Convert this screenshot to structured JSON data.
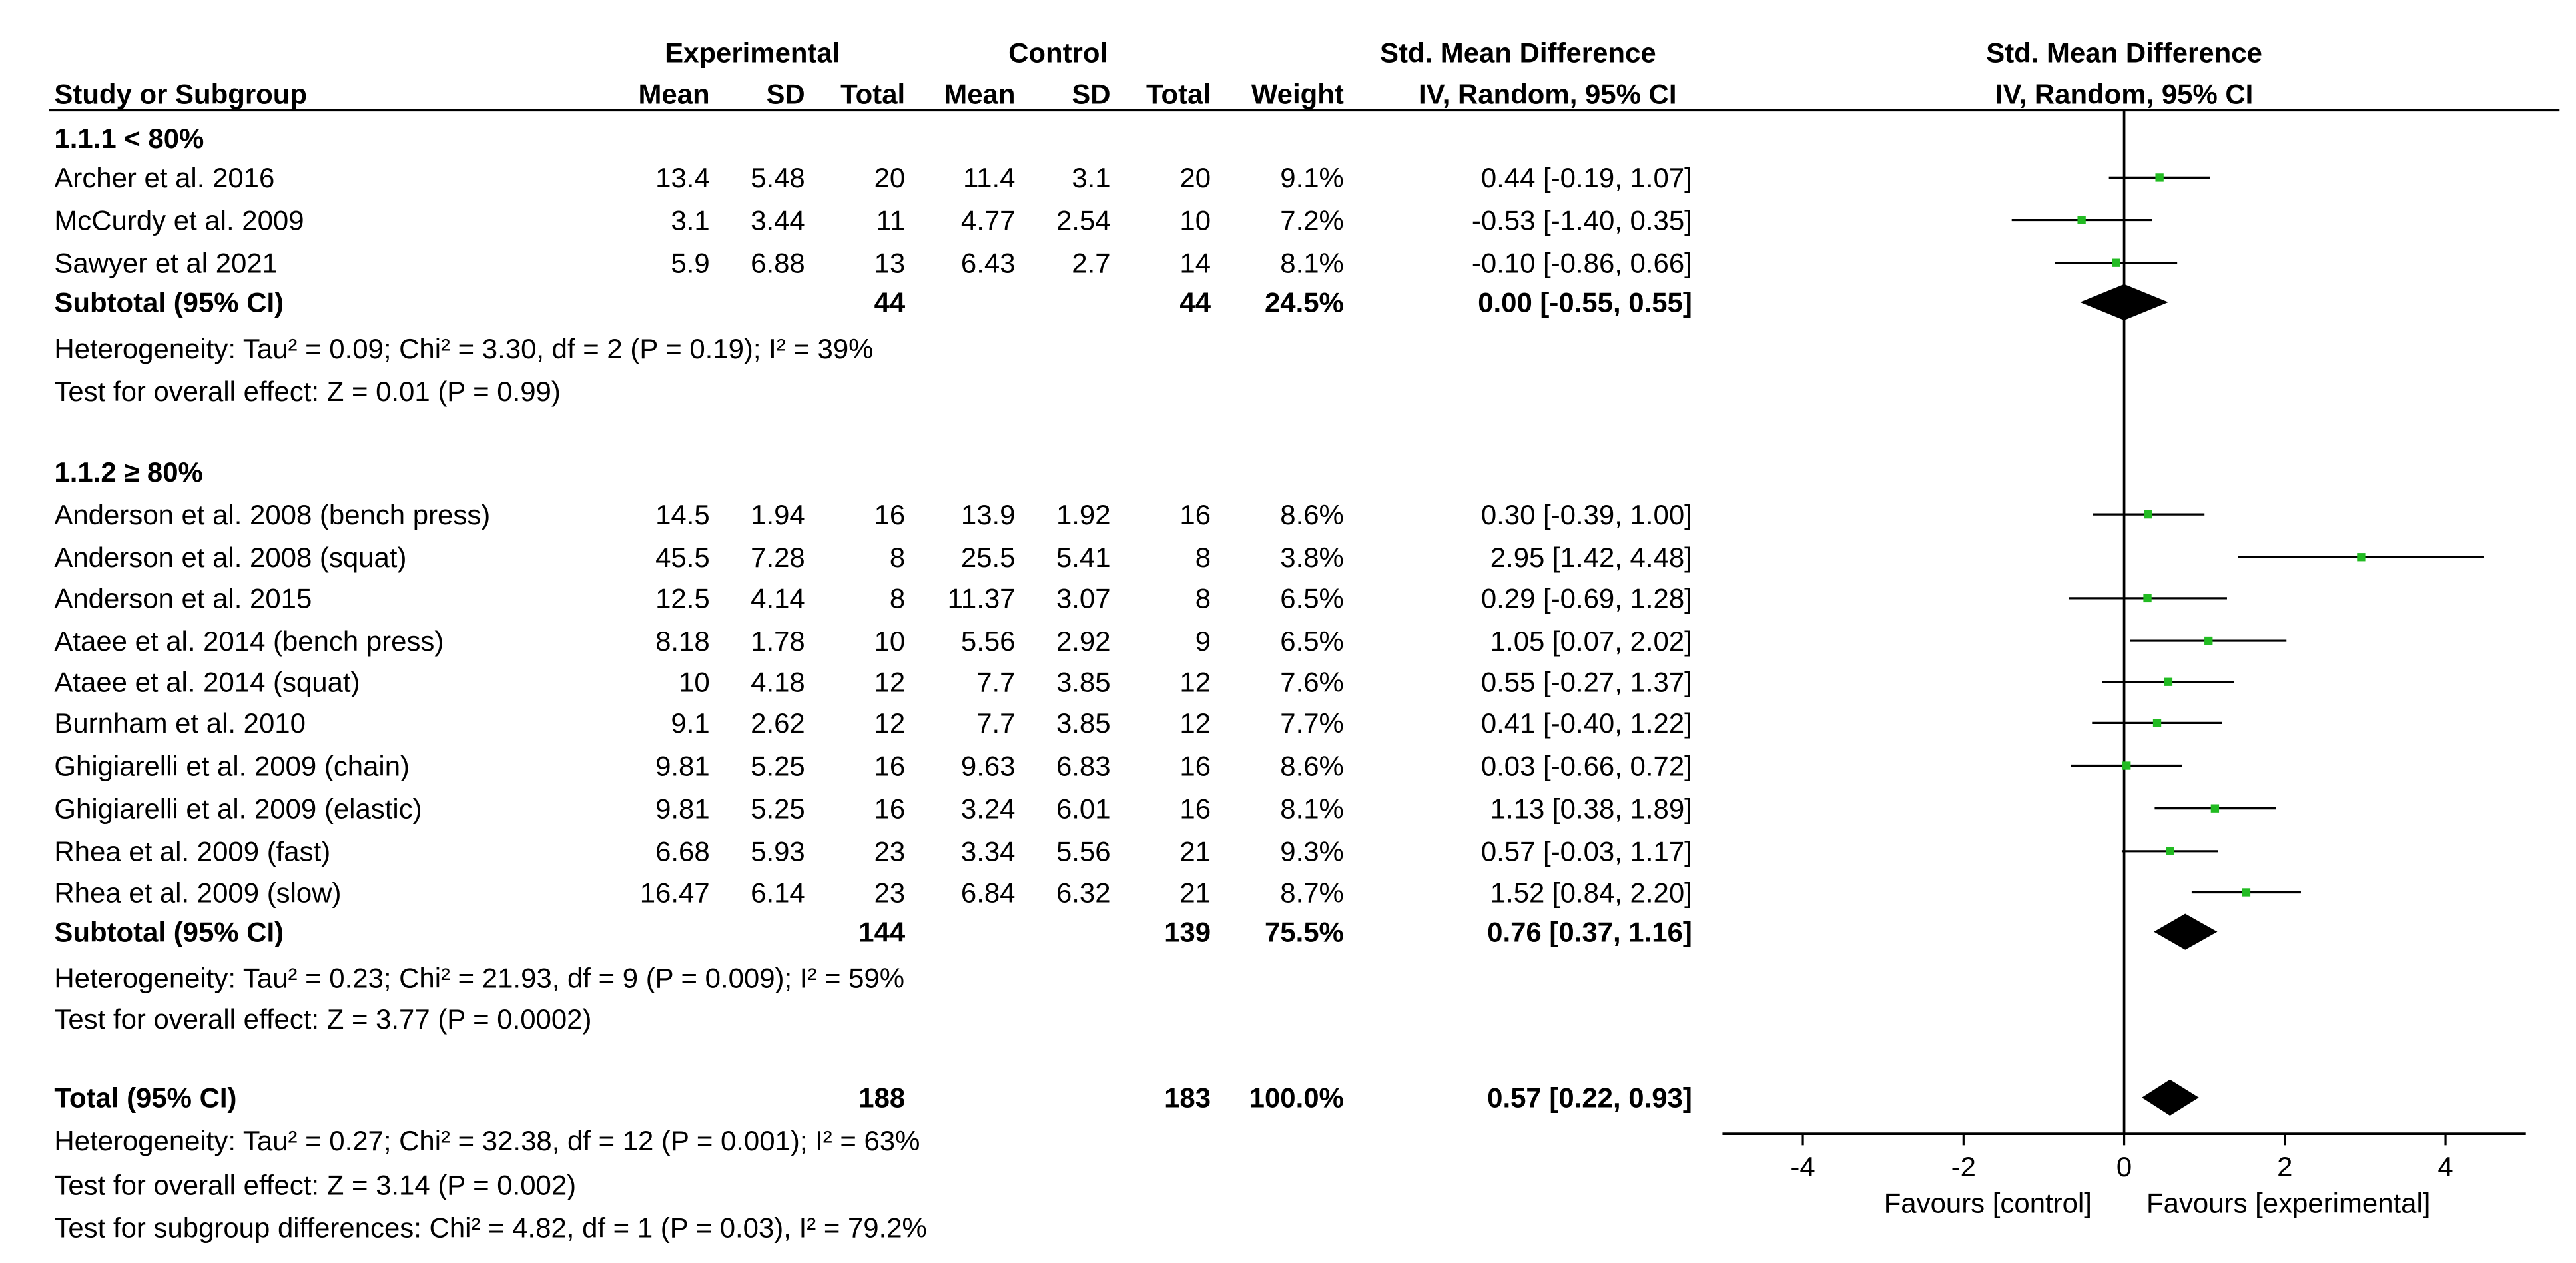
{
  "chart_data": {
    "type": "forest",
    "header": {
      "study_col": "Study or Subgroup",
      "experimental_group": "Experimental",
      "control_group": "Control",
      "mean": "Mean",
      "sd": "SD",
      "total": "Total",
      "weight": "Weight",
      "smd_title": "Std. Mean Difference",
      "smd_method": "IV, Random, 95% CI",
      "plot_title": "Std. Mean Difference",
      "plot_method": "IV, Random, 95% CI"
    },
    "subgroups": [
      {
        "label": "1.1.1 < 80%",
        "studies": [
          {
            "name": "Archer et al. 2016",
            "exp_mean": "13.4",
            "exp_sd": "5.48",
            "exp_total": "20",
            "ctl_mean": "11.4",
            "ctl_sd": "3.1",
            "ctl_total": "20",
            "weight": "9.1%",
            "ci_text": "0.44 [-0.19, 1.07]",
            "smd": 0.44,
            "lo": -0.19,
            "hi": 1.07
          },
          {
            "name": "McCurdy et al. 2009",
            "exp_mean": "3.1",
            "exp_sd": "3.44",
            "exp_total": "11",
            "ctl_mean": "4.77",
            "ctl_sd": "2.54",
            "ctl_total": "10",
            "weight": "7.2%",
            "ci_text": "-0.53 [-1.40, 0.35]",
            "smd": -0.53,
            "lo": -1.4,
            "hi": 0.35
          },
          {
            "name": "Sawyer et al 2021",
            "exp_mean": "5.9",
            "exp_sd": "6.88",
            "exp_total": "13",
            "ctl_mean": "6.43",
            "ctl_sd": "2.7",
            "ctl_total": "14",
            "weight": "8.1%",
            "ci_text": "-0.10 [-0.86, 0.66]",
            "smd": -0.1,
            "lo": -0.86,
            "hi": 0.66
          }
        ],
        "subtotal": {
          "label": "Subtotal (95% CI)",
          "exp_total": "44",
          "ctl_total": "44",
          "weight": "24.5%",
          "ci_text": "0.00 [-0.55, 0.55]",
          "smd": 0.0,
          "lo": -0.55,
          "hi": 0.55
        },
        "heterogeneity": "Heterogeneity: Tau² = 0.09; Chi² = 3.30, df = 2 (P = 0.19); I² = 39%",
        "overall_effect": "Test for overall effect: Z = 0.01 (P = 0.99)"
      },
      {
        "label": "1.1.2 ≥ 80%",
        "studies": [
          {
            "name": "Anderson et al. 2008 (bench press)",
            "exp_mean": "14.5",
            "exp_sd": "1.94",
            "exp_total": "16",
            "ctl_mean": "13.9",
            "ctl_sd": "1.92",
            "ctl_total": "16",
            "weight": "8.6%",
            "ci_text": "0.30 [-0.39, 1.00]",
            "smd": 0.3,
            "lo": -0.39,
            "hi": 1.0
          },
          {
            "name": "Anderson et al. 2008 (squat)",
            "exp_mean": "45.5",
            "exp_sd": "7.28",
            "exp_total": "8",
            "ctl_mean": "25.5",
            "ctl_sd": "5.41",
            "ctl_total": "8",
            "weight": "3.8%",
            "ci_text": "2.95 [1.42, 4.48]",
            "smd": 2.95,
            "lo": 1.42,
            "hi": 4.48
          },
          {
            "name": "Anderson et al. 2015",
            "exp_mean": "12.5",
            "exp_sd": "4.14",
            "exp_total": "8",
            "ctl_mean": "11.37",
            "ctl_sd": "3.07",
            "ctl_total": "8",
            "weight": "6.5%",
            "ci_text": "0.29 [-0.69, 1.28]",
            "smd": 0.29,
            "lo": -0.69,
            "hi": 1.28
          },
          {
            "name": "Ataee et al. 2014 (bench press)",
            "exp_mean": "8.18",
            "exp_sd": "1.78",
            "exp_total": "10",
            "ctl_mean": "5.56",
            "ctl_sd": "2.92",
            "ctl_total": "9",
            "weight": "6.5%",
            "ci_text": "1.05 [0.07, 2.02]",
            "smd": 1.05,
            "lo": 0.07,
            "hi": 2.02
          },
          {
            "name": "Ataee et al. 2014 (squat)",
            "exp_mean": "10",
            "exp_sd": "4.18",
            "exp_total": "12",
            "ctl_mean": "7.7",
            "ctl_sd": "3.85",
            "ctl_total": "12",
            "weight": "7.6%",
            "ci_text": "0.55 [-0.27, 1.37]",
            "smd": 0.55,
            "lo": -0.27,
            "hi": 1.37
          },
          {
            "name": "Burnham et al. 2010",
            "exp_mean": "9.1",
            "exp_sd": "2.62",
            "exp_total": "12",
            "ctl_mean": "7.7",
            "ctl_sd": "3.85",
            "ctl_total": "12",
            "weight": "7.7%",
            "ci_text": "0.41 [-0.40, 1.22]",
            "smd": 0.41,
            "lo": -0.4,
            "hi": 1.22
          },
          {
            "name": "Ghigiarelli et al. 2009 (chain)",
            "exp_mean": "9.81",
            "exp_sd": "5.25",
            "exp_total": "16",
            "ctl_mean": "9.63",
            "ctl_sd": "6.83",
            "ctl_total": "16",
            "weight": "8.6%",
            "ci_text": "0.03 [-0.66, 0.72]",
            "smd": 0.03,
            "lo": -0.66,
            "hi": 0.72
          },
          {
            "name": "Ghigiarelli et al. 2009 (elastic)",
            "exp_mean": "9.81",
            "exp_sd": "5.25",
            "exp_total": "16",
            "ctl_mean": "3.24",
            "ctl_sd": "6.01",
            "ctl_total": "16",
            "weight": "8.1%",
            "ci_text": "1.13 [0.38, 1.89]",
            "smd": 1.13,
            "lo": 0.38,
            "hi": 1.89
          },
          {
            "name": "Rhea et al. 2009 (fast)",
            "exp_mean": "6.68",
            "exp_sd": "5.93",
            "exp_total": "23",
            "ctl_mean": "3.34",
            "ctl_sd": "5.56",
            "ctl_total": "21",
            "weight": "9.3%",
            "ci_text": "0.57 [-0.03, 1.17]",
            "smd": 0.57,
            "lo": -0.03,
            "hi": 1.17
          },
          {
            "name": "Rhea et al. 2009 (slow)",
            "exp_mean": "16.47",
            "exp_sd": "6.14",
            "exp_total": "23",
            "ctl_mean": "6.84",
            "ctl_sd": "6.32",
            "ctl_total": "21",
            "weight": "8.7%",
            "ci_text": "1.52 [0.84, 2.20]",
            "smd": 1.52,
            "lo": 0.84,
            "hi": 2.2
          }
        ],
        "subtotal": {
          "label": "Subtotal (95% CI)",
          "exp_total": "144",
          "ctl_total": "139",
          "weight": "75.5%",
          "ci_text": "0.76 [0.37, 1.16]",
          "smd": 0.76,
          "lo": 0.37,
          "hi": 1.16
        },
        "heterogeneity": "Heterogeneity: Tau² = 0.23; Chi² = 21.93, df = 9 (P = 0.009); I² = 59%",
        "overall_effect": "Test for overall effect: Z = 3.77 (P = 0.0002)"
      }
    ],
    "total": {
      "label": "Total (95% CI)",
      "exp_total": "188",
      "ctl_total": "183",
      "weight": "100.0%",
      "ci_text": "0.57 [0.22, 0.93]",
      "smd": 0.57,
      "lo": 0.22,
      "hi": 0.93
    },
    "total_heterogeneity": "Heterogeneity: Tau² = 0.27; Chi² = 32.38, df = 12 (P = 0.001); I² = 63%",
    "total_overall_effect": "Test for overall effect: Z = 3.14 (P = 0.002)",
    "subgroup_differences": "Test for subgroup differences: Chi² = 4.82, df = 1 (P = 0.03), I² = 79.2%",
    "xlim": [
      -5,
      5
    ],
    "xticks": [
      -4,
      -2,
      0,
      2,
      4
    ],
    "favours_left": "Favours [control]",
    "favours_right": "Favours [experimental]",
    "point_color": "#22bb22"
  }
}
